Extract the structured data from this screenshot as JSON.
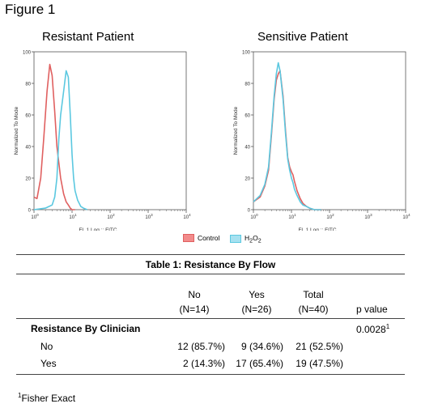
{
  "figure": {
    "label": "Figure 1",
    "panels": [
      {
        "title": "Resistant Patient",
        "ylabel": "Normalized To Mode",
        "xlabel": "FL 1 Log :: FITC"
      },
      {
        "title": "Sensitive Patient",
        "ylabel": "Normalized To Mode",
        "xlabel": "FL 1 Log :: FITC"
      }
    ],
    "legend": {
      "control": "Control",
      "h2o2": "H",
      "h2o2_sub": "2",
      "h2o2_o": "O",
      "h2o2_sub2": "2"
    },
    "colors": {
      "control": "#e06060",
      "h2o2": "#5bc8e0",
      "control_fill": "#f28b8b",
      "h2o2_fill": "#a6e1f0"
    }
  },
  "chart_data": [
    {
      "type": "line",
      "title": "Resistant Patient",
      "xlabel": "FL 1 Log :: FITC",
      "ylabel": "Normalized To Mode",
      "x_scale": "log",
      "xlim": [
        1,
        10000
      ],
      "ylim": [
        0,
        100
      ],
      "x_ticks": [
        "10^0",
        "10^1",
        "10^2",
        "10^3",
        "10^4"
      ],
      "y_ticks": [
        0,
        20,
        40,
        60,
        80,
        100
      ],
      "series": [
        {
          "name": "Control",
          "x": [
            1,
            1.2,
            1.5,
            1.8,
            2.2,
            2.6,
            3,
            3.5,
            4,
            5,
            6,
            7,
            8,
            9,
            10,
            12
          ],
          "y": [
            8,
            7,
            20,
            45,
            75,
            92,
            85,
            62,
            40,
            20,
            10,
            5,
            3,
            1,
            0,
            0
          ]
        },
        {
          "name": "H2O2",
          "x": [
            1,
            2,
            3,
            3.5,
            4,
            4.5,
            5,
            6,
            7,
            8,
            9,
            10,
            11,
            12,
            14,
            17,
            20,
            25
          ],
          "y": [
            0,
            1,
            3,
            8,
            20,
            45,
            60,
            75,
            88,
            84,
            60,
            35,
            20,
            12,
            6,
            2,
            1,
            0
          ]
        }
      ]
    },
    {
      "type": "line",
      "title": "Sensitive Patient",
      "xlabel": "FL 1 Log :: FITC",
      "ylabel": "Normalized To Mode",
      "x_scale": "log",
      "xlim": [
        1,
        10000
      ],
      "ylim": [
        0,
        100
      ],
      "x_ticks": [
        "10^0",
        "10^1",
        "10^2",
        "10^3",
        "10^4"
      ],
      "y_ticks": [
        0,
        20,
        40,
        60,
        80,
        100
      ],
      "series": [
        {
          "name": "Control",
          "x": [
            1,
            1.5,
            2,
            2.5,
            3,
            3.5,
            4,
            4.5,
            5,
            6,
            7,
            8,
            9,
            10,
            11,
            12,
            14,
            17,
            20,
            25,
            30,
            40,
            60
          ],
          "y": [
            5,
            8,
            15,
            25,
            48,
            70,
            82,
            86,
            88,
            72,
            50,
            33,
            27,
            24,
            22,
            18,
            12,
            7,
            4,
            2,
            1,
            0,
            0
          ]
        },
        {
          "name": "H2O2",
          "x": [
            1,
            1.5,
            2,
            2.5,
            3,
            3.5,
            4,
            4.5,
            5,
            6,
            7,
            8,
            9,
            10,
            11,
            12,
            14,
            17,
            20,
            25,
            30,
            40,
            60
          ],
          "y": [
            5,
            9,
            16,
            27,
            50,
            72,
            86,
            93,
            88,
            70,
            48,
            32,
            25,
            20,
            17,
            13,
            9,
            5,
            3,
            2,
            1,
            0,
            0
          ]
        }
      ]
    }
  ],
  "table": {
    "title": "Table 1: Resistance By Flow",
    "columns": [
      {
        "label": "No",
        "n": "(N=14)"
      },
      {
        "label": "Yes",
        "n": "(N=26)"
      },
      {
        "label": "Total",
        "n": "(N=40)"
      }
    ],
    "pvalue_header": "p value",
    "group_label": "Resistance By Clinician",
    "pvalue": "0.0028",
    "pvalue_sup": "1",
    "rows": [
      {
        "label": "No",
        "cells": [
          "12 (85.7%)",
          "9 (34.6%)",
          "21 (52.5%)"
        ]
      },
      {
        "label": "Yes",
        "cells": [
          "2 (14.3%)",
          "17 (65.4%)",
          "19 (47.5%)"
        ]
      }
    ],
    "footnote_sup": "1",
    "footnote": "Fisher Exact"
  }
}
